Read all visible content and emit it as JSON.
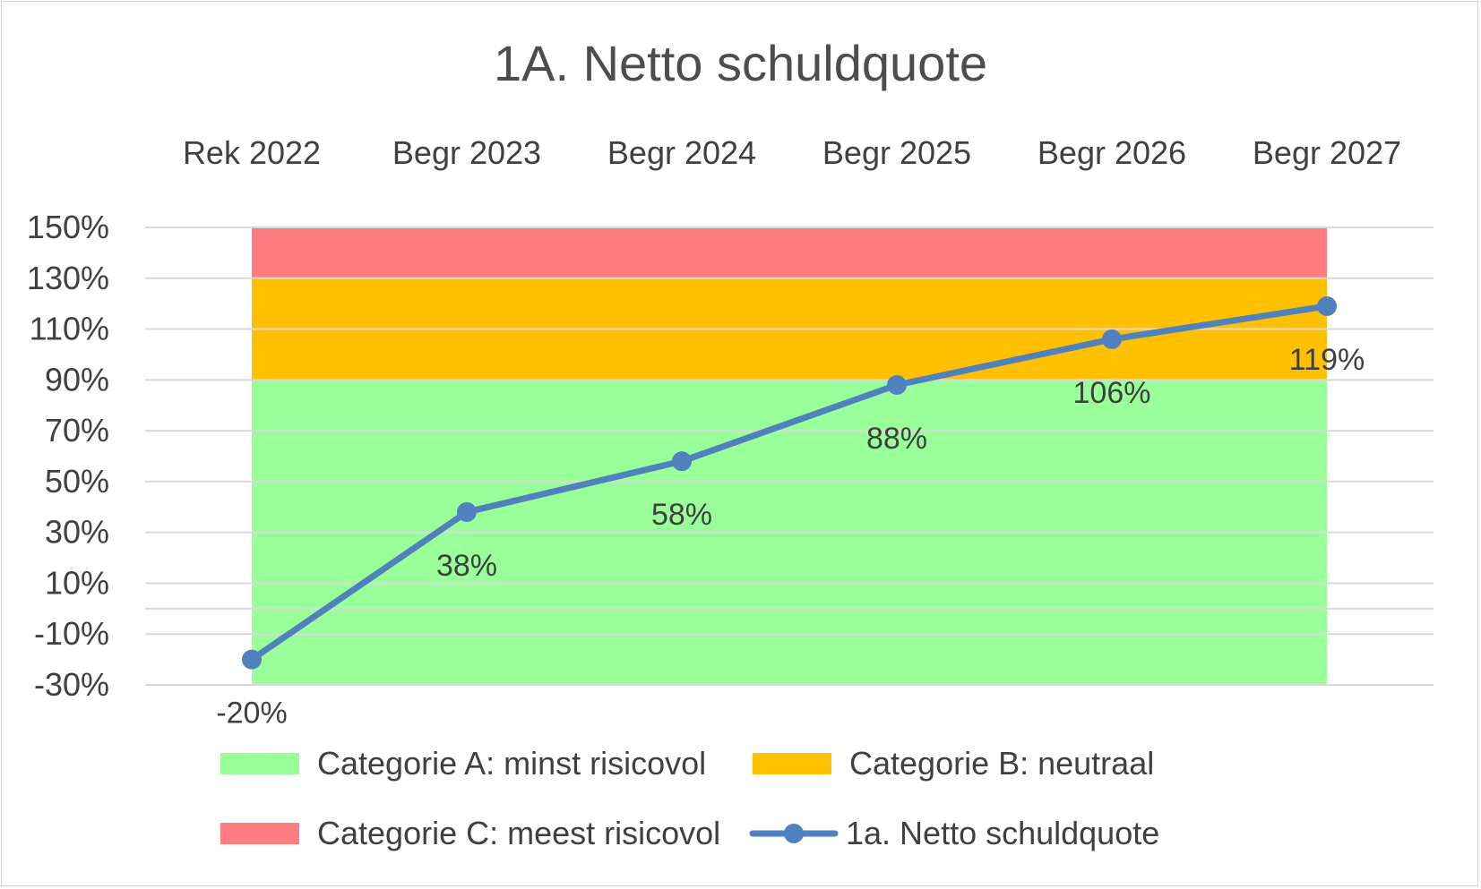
{
  "chart_data": {
    "type": "line",
    "title": "1A. Netto schuldquote",
    "categories": [
      "Rek 2022",
      "Begr 2023",
      "Begr 2024",
      "Begr 2025",
      "Begr 2026",
      "Begr 2027"
    ],
    "y_ticks": [
      "150%",
      "130%",
      "110%",
      "90%",
      "70%",
      "50%",
      "30%",
      "10%",
      "-10%",
      "-30%"
    ],
    "ylim": [
      -30,
      150
    ],
    "grid": true,
    "legend_position": "bottom",
    "bands": [
      {
        "name": "Categorie A: minst risicovol",
        "from": -30,
        "to": 90,
        "color": "#99ff99"
      },
      {
        "name": "Categorie B: neutraal",
        "from": 90,
        "to": 130,
        "color": "#ffc000"
      },
      {
        "name": "Categorie C: meest risicovol",
        "from": 130,
        "to": 150,
        "color": "#ff7c80"
      }
    ],
    "series": [
      {
        "name": "1a. Netto schuldquote",
        "values": [
          -20,
          38,
          58,
          88,
          106,
          119
        ],
        "labels": [
          "-20%",
          "38%",
          "58%",
          "88%",
          "106%",
          "119%"
        ],
        "color": "#4f81bd"
      }
    ]
  }
}
